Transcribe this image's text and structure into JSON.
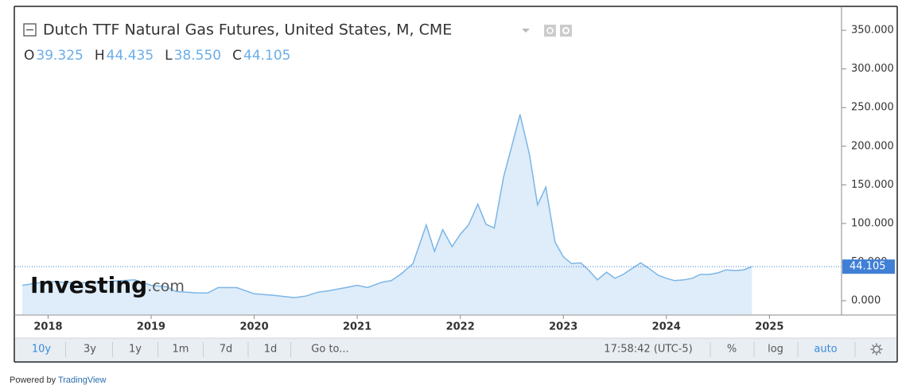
{
  "header": {
    "title": "Dutch TTF Natural Gas Futures, United States, M, CME",
    "ohlc": [
      {
        "key": "O",
        "value": "39.325"
      },
      {
        "key": "H",
        "value": "44.435"
      },
      {
        "key": "L",
        "value": "38.550"
      },
      {
        "key": "C",
        "value": "44.105"
      }
    ]
  },
  "chart_data": {
    "type": "area",
    "x": [
      2017.75,
      2018.0,
      2018.3,
      2018.6,
      2018.84,
      2019.0,
      2019.15,
      2019.24,
      2019.45,
      2019.55,
      2019.65,
      2019.83,
      2020.0,
      2020.19,
      2020.39,
      2020.5,
      2020.62,
      2020.73,
      2020.89,
      2021.0,
      2021.1,
      2021.24,
      2021.33,
      2021.43,
      2021.54,
      2021.67,
      2021.75,
      2021.83,
      2021.92,
      2022.0,
      2022.08,
      2022.17,
      2022.25,
      2022.33,
      2022.42,
      2022.5,
      2022.58,
      2022.67,
      2022.75,
      2022.83,
      2022.92,
      2023.0,
      2023.08,
      2023.17,
      2023.25,
      2023.33,
      2023.42,
      2023.5,
      2023.58,
      2023.67,
      2023.75,
      2023.83,
      2023.92,
      2024.0,
      2024.08,
      2024.17,
      2024.25,
      2024.33,
      2024.42,
      2024.5,
      2024.58,
      2024.67,
      2024.75,
      2024.83
    ],
    "values": [
      20,
      25,
      23,
      25,
      27,
      20,
      18,
      12,
      10,
      10,
      17,
      17,
      9,
      7,
      4,
      6,
      11,
      13,
      17,
      20,
      17,
      24,
      26,
      35,
      48,
      98,
      64,
      92,
      70,
      86,
      98,
      125,
      99,
      94,
      160,
      200,
      241,
      190,
      124,
      147,
      76,
      57,
      48,
      49,
      39,
      27,
      37,
      29,
      34,
      42,
      49,
      42,
      33,
      29,
      26,
      27,
      29,
      34,
      34,
      36,
      40,
      39,
      40,
      44.105
    ],
    "color": "#7cb5e6",
    "fill": "#deedf9",
    "xlim": [
      2017.68,
      2025.7
    ],
    "xticks": [
      2018,
      2019,
      2020,
      2021,
      2022,
      2023,
      2024,
      2025
    ],
    "ylim": [
      -17.5,
      380
    ],
    "yticks": [
      {
        "value": 0,
        "label": "0.000"
      },
      {
        "value": 50,
        "label": "50.000"
      },
      {
        "value": 100,
        "label": "100.000"
      },
      {
        "value": 150,
        "label": "150.000"
      },
      {
        "value": 200,
        "label": "200.000"
      },
      {
        "value": 250,
        "label": "250.000"
      },
      {
        "value": 300,
        "label": "300.000"
      },
      {
        "value": 350,
        "label": "350.000"
      }
    ]
  },
  "watermark": {
    "name": "Investing",
    "suffix": ".com"
  },
  "toolbar": {
    "ranges": [
      "10y",
      "3y",
      "1y",
      "1m",
      "7d",
      "1d",
      "Go to..."
    ],
    "time": "17:58:42 (UTC-5)",
    "options": [
      "%",
      "log",
      "auto"
    ]
  },
  "footer": {
    "prefix": "Powered by ",
    "brand": "TradingView"
  }
}
